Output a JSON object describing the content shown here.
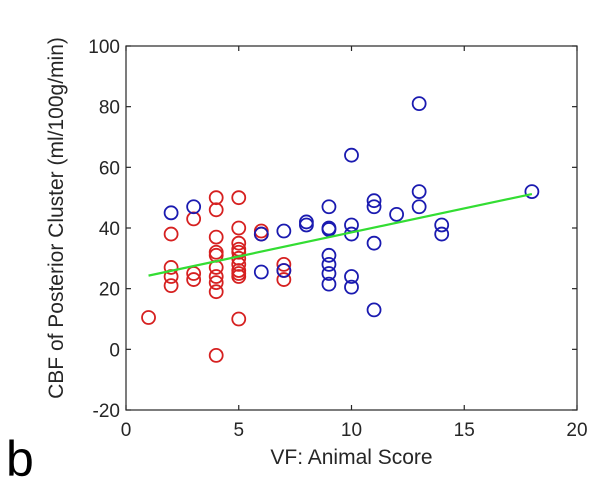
{
  "chart_data": {
    "type": "scatter",
    "title": "",
    "xlabel": "VF: Animal Score",
    "ylabel": "CBF of Posterior Cluster (ml/100g/min)",
    "panel_label": "b",
    "xlim": [
      0,
      20
    ],
    "ylim": [
      -20,
      100
    ],
    "xticks": [
      0,
      5,
      10,
      15,
      20
    ],
    "yticks": [
      -20,
      0,
      20,
      40,
      60,
      80,
      100
    ],
    "grid": false,
    "legend": "none",
    "series": [
      {
        "color": "#d62020",
        "marker": "open-circle",
        "points": [
          [
            1,
            10.5
          ],
          [
            2,
            38
          ],
          [
            2,
            27
          ],
          [
            2,
            24
          ],
          [
            2,
            21
          ],
          [
            3,
            43
          ],
          [
            3,
            25
          ],
          [
            3,
            23
          ],
          [
            4,
            50
          ],
          [
            4,
            46
          ],
          [
            4,
            37
          ],
          [
            4,
            32
          ],
          [
            4,
            31
          ],
          [
            4,
            27
          ],
          [
            4,
            24
          ],
          [
            4,
            22
          ],
          [
            4,
            19
          ],
          [
            4,
            -2
          ],
          [
            5,
            50
          ],
          [
            5,
            40
          ],
          [
            5,
            35
          ],
          [
            5,
            33
          ],
          [
            5,
            32
          ],
          [
            5,
            30
          ],
          [
            5,
            28
          ],
          [
            5,
            26
          ],
          [
            5,
            25
          ],
          [
            5,
            24
          ],
          [
            5,
            10
          ],
          [
            6,
            39
          ],
          [
            6,
            38
          ],
          [
            7,
            28
          ],
          [
            7,
            26
          ],
          [
            7,
            23
          ]
        ]
      },
      {
        "color": "#1a1ab0",
        "marker": "open-circle",
        "points": [
          [
            2,
            45
          ],
          [
            3,
            47
          ],
          [
            6,
            38
          ],
          [
            6,
            25.5
          ],
          [
            7,
            39
          ],
          [
            7,
            26
          ],
          [
            8,
            42
          ],
          [
            8,
            41
          ],
          [
            9,
            47
          ],
          [
            9,
            40
          ],
          [
            9,
            39.5
          ],
          [
            9,
            31
          ],
          [
            9,
            28
          ],
          [
            9,
            25
          ],
          [
            9,
            21.5
          ],
          [
            10,
            64
          ],
          [
            10,
            41
          ],
          [
            10,
            38
          ],
          [
            10,
            24
          ],
          [
            10,
            20.5
          ],
          [
            11,
            49
          ],
          [
            11,
            47
          ],
          [
            11,
            35
          ],
          [
            11,
            13
          ],
          [
            12,
            44.5
          ],
          [
            13,
            81
          ],
          [
            13,
            52
          ],
          [
            13,
            47
          ],
          [
            14,
            41
          ],
          [
            14,
            38
          ],
          [
            18,
            52
          ]
        ]
      }
    ],
    "fit_line": {
      "color": "#33dd33",
      "x": [
        1,
        18
      ],
      "y": [
        24.3,
        51.2
      ]
    }
  }
}
